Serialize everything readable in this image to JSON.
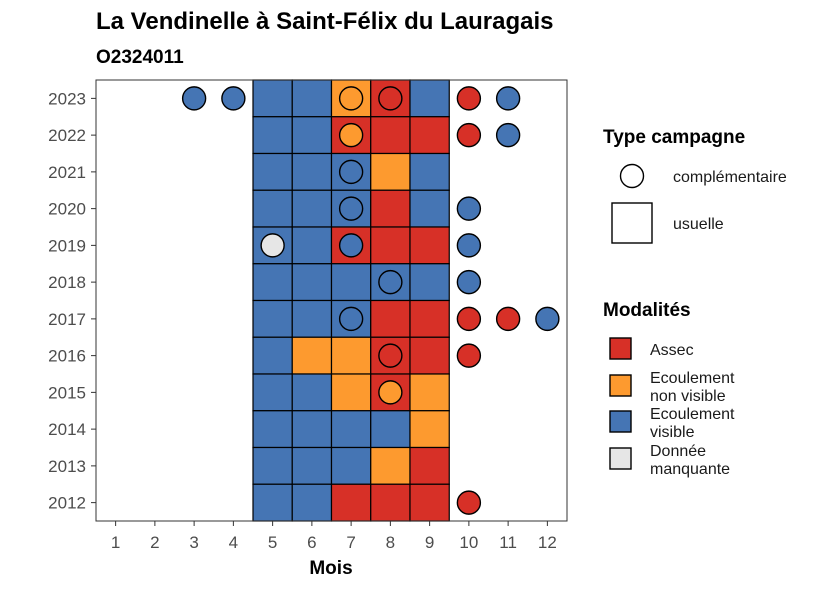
{
  "chart_data": {
    "type": "heatmap",
    "title": "La Vendinelle à Saint-Félix du Lauragais",
    "subtitle": "O2324011",
    "xlabel": "Mois",
    "ylabel": "",
    "x_ticks": [
      1,
      2,
      3,
      4,
      5,
      6,
      7,
      8,
      9,
      10,
      11,
      12
    ],
    "y_ticks": [
      2012,
      2013,
      2014,
      2015,
      2016,
      2017,
      2018,
      2019,
      2020,
      2021,
      2022,
      2023
    ],
    "xlim": [
      0.5,
      12.5
    ],
    "ylim": [
      2011.5,
      2023.5
    ],
    "grid": false,
    "legend_position": "right",
    "colors": {
      "Assec": "#d73027",
      "Ecoulement non visible": "#fd9a2f",
      "Ecoulement visible": "#4575b4",
      "Donnée manquante": "#e6e6e6"
    },
    "legend_type": {
      "title": "Type campagne",
      "items": [
        {
          "label": "complémentaire",
          "shape": "circle"
        },
        {
          "label": "usuelle",
          "shape": "square"
        }
      ]
    },
    "legend_modalites": {
      "title": "Modalités",
      "items": [
        {
          "key": "Assec",
          "lines": [
            "Assec"
          ]
        },
        {
          "key": "Ecoulement non visible",
          "lines": [
            "Ecoulement",
            "non visible"
          ]
        },
        {
          "key": "Ecoulement visible",
          "lines": [
            "Ecoulement",
            "visible"
          ]
        },
        {
          "key": "Donnée manquante",
          "lines": [
            "Donnée",
            "manquante"
          ]
        }
      ]
    },
    "usuelle": [
      {
        "year": 2023,
        "cells": {
          "5": "Ecoulement visible",
          "6": "Ecoulement visible",
          "7": "Ecoulement non visible",
          "8": "Assec",
          "9": "Ecoulement visible"
        }
      },
      {
        "year": 2022,
        "cells": {
          "5": "Ecoulement visible",
          "6": "Ecoulement visible",
          "7": "Assec",
          "8": "Assec",
          "9": "Assec"
        }
      },
      {
        "year": 2021,
        "cells": {
          "5": "Ecoulement visible",
          "6": "Ecoulement visible",
          "7": "Ecoulement visible",
          "8": "Ecoulement non visible",
          "9": "Ecoulement visible"
        }
      },
      {
        "year": 2020,
        "cells": {
          "5": "Ecoulement visible",
          "6": "Ecoulement visible",
          "7": "Ecoulement visible",
          "8": "Assec",
          "9": "Ecoulement visible"
        }
      },
      {
        "year": 2019,
        "cells": {
          "5": "Ecoulement visible",
          "6": "Ecoulement visible",
          "7": "Assec",
          "8": "Assec",
          "9": "Assec"
        }
      },
      {
        "year": 2018,
        "cells": {
          "5": "Ecoulement visible",
          "6": "Ecoulement visible",
          "7": "Ecoulement visible",
          "8": "Ecoulement visible",
          "9": "Ecoulement visible"
        }
      },
      {
        "year": 2017,
        "cells": {
          "5": "Ecoulement visible",
          "6": "Ecoulement visible",
          "7": "Ecoulement visible",
          "8": "Assec",
          "9": "Assec"
        }
      },
      {
        "year": 2016,
        "cells": {
          "5": "Ecoulement visible",
          "6": "Ecoulement non visible",
          "7": "Ecoulement non visible",
          "8": "Assec",
          "9": "Assec"
        }
      },
      {
        "year": 2015,
        "cells": {
          "5": "Ecoulement visible",
          "6": "Ecoulement visible",
          "7": "Ecoulement non visible",
          "8": "Assec",
          "9": "Ecoulement non visible"
        }
      },
      {
        "year": 2014,
        "cells": {
          "5": "Ecoulement visible",
          "6": "Ecoulement visible",
          "7": "Ecoulement visible",
          "8": "Ecoulement visible",
          "9": "Ecoulement non visible"
        }
      },
      {
        "year": 2013,
        "cells": {
          "5": "Ecoulement visible",
          "6": "Ecoulement visible",
          "7": "Ecoulement visible",
          "8": "Ecoulement non visible",
          "9": "Assec"
        }
      },
      {
        "year": 2012,
        "cells": {
          "5": "Ecoulement visible",
          "6": "Ecoulement visible",
          "7": "Assec",
          "8": "Assec",
          "9": "Assec"
        }
      }
    ],
    "complementaire": [
      {
        "year": 2023,
        "month": 3,
        "modalite": "Ecoulement visible"
      },
      {
        "year": 2023,
        "month": 4,
        "modalite": "Ecoulement visible"
      },
      {
        "year": 2023,
        "month": 7,
        "modalite": "Ecoulement non visible"
      },
      {
        "year": 2023,
        "month": 8,
        "modalite": "Assec"
      },
      {
        "year": 2023,
        "month": 10,
        "modalite": "Assec"
      },
      {
        "year": 2023,
        "month": 11,
        "modalite": "Ecoulement visible"
      },
      {
        "year": 2022,
        "month": 7,
        "modalite": "Ecoulement non visible"
      },
      {
        "year": 2022,
        "month": 10,
        "modalite": "Assec"
      },
      {
        "year": 2022,
        "month": 11,
        "modalite": "Ecoulement visible"
      },
      {
        "year": 2021,
        "month": 7,
        "modalite": "Ecoulement visible"
      },
      {
        "year": 2020,
        "month": 7,
        "modalite": "Ecoulement visible"
      },
      {
        "year": 2020,
        "month": 10,
        "modalite": "Ecoulement visible"
      },
      {
        "year": 2019,
        "month": 5,
        "modalite": "Donnée manquante"
      },
      {
        "year": 2019,
        "month": 7,
        "modalite": "Ecoulement visible"
      },
      {
        "year": 2019,
        "month": 10,
        "modalite": "Ecoulement visible"
      },
      {
        "year": 2018,
        "month": 8,
        "modalite": "Ecoulement visible"
      },
      {
        "year": 2018,
        "month": 10,
        "modalite": "Ecoulement visible"
      },
      {
        "year": 2017,
        "month": 7,
        "modalite": "Ecoulement visible"
      },
      {
        "year": 2017,
        "month": 10,
        "modalite": "Assec"
      },
      {
        "year": 2017,
        "month": 11,
        "modalite": "Assec"
      },
      {
        "year": 2017,
        "month": 12,
        "modalite": "Ecoulement visible"
      },
      {
        "year": 2016,
        "month": 8,
        "modalite": "Assec"
      },
      {
        "year": 2016,
        "month": 10,
        "modalite": "Assec"
      },
      {
        "year": 2015,
        "month": 8,
        "modalite": "Ecoulement non visible"
      },
      {
        "year": 2012,
        "month": 10,
        "modalite": "Assec"
      }
    ]
  }
}
